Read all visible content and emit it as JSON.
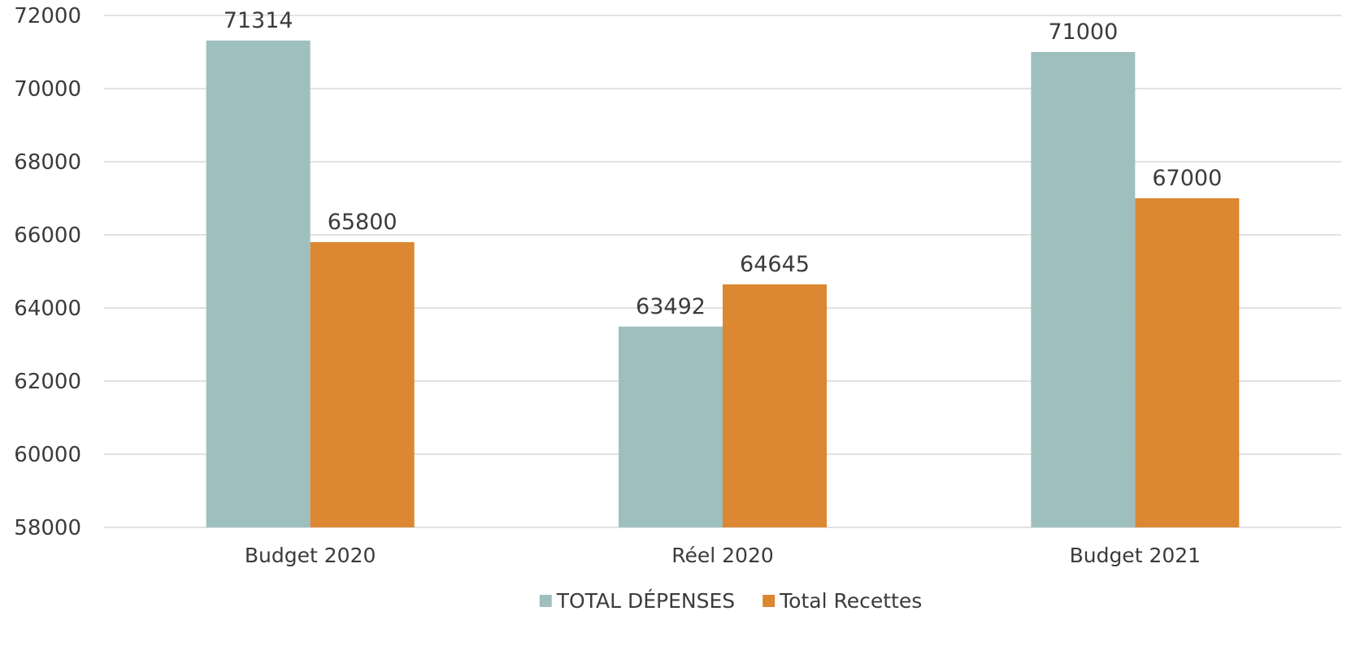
{
  "chart_data": {
    "type": "bar",
    "categories": [
      "Budget 2020",
      "Réel 2020",
      "Budget 2021"
    ],
    "series": [
      {
        "name": "TOTAL DÉPENSES",
        "values": [
          71314,
          63492,
          71000
        ],
        "color": "#9fbfbe"
      },
      {
        "name": "Total Recettes",
        "values": [
          65800,
          64645,
          67000
        ],
        "color": "#dc8732"
      }
    ],
    "ylim": [
      58000,
      72000
    ],
    "yticks": [
      58000,
      60000,
      62000,
      64000,
      66000,
      68000,
      70000,
      72000
    ],
    "grid": true,
    "legend": "bottom",
    "data_labels": true,
    "title": "",
    "xlabel": "",
    "ylabel": ""
  }
}
